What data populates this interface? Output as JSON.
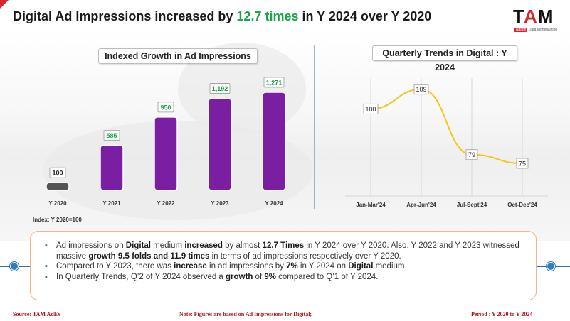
{
  "title": {
    "prefix": "Digital Ad Impressions increased by ",
    "highlight": "12.7 times",
    "suffix": " in Y 2024 over Y 2020"
  },
  "logo": {
    "brand_a": "T",
    "brand_b": "A",
    "brand_c": "M",
    "tag": "Nation",
    "subtitle": "Data Monetization"
  },
  "colors": {
    "bar": "#7b1fa2",
    "bar_base": "#555555",
    "line": "#f5c518",
    "accent_green": "#1aa34a",
    "footer_red": "#b0121b",
    "timeline": "#2f6db5"
  },
  "chart_data": [
    {
      "type": "bar",
      "title": "Indexed Growth in Ad Impressions",
      "categories": [
        "Y 2020",
        "Y 2021",
        "Y 2022",
        "Y 2023",
        "Y 2024"
      ],
      "values": [
        100,
        585,
        950,
        1192,
        1271
      ],
      "data_labels": [
        "100",
        "585",
        "950",
        "1,192",
        "1,271"
      ],
      "ylim": [
        0,
        1400
      ],
      "grid": false
    },
    {
      "type": "line",
      "title": "Quarterly Trends in Digital : Y 2024",
      "categories": [
        "Jan-Mar'24",
        "Apr-Jun'24",
        "Jul-Sept'24",
        "Oct-Dec'24"
      ],
      "values": [
        100,
        109,
        79,
        75
      ],
      "ylim": [
        60,
        120
      ],
      "grid": true
    }
  ],
  "index_note": "Index: Y 2020=100",
  "notes": {
    "n1_a": "Ad impressions on ",
    "n1_b": "Digital",
    "n1_c": " medium ",
    "n1_d": "increased",
    "n1_e": " by almost ",
    "n1_f": "12.7 Times",
    "n1_g": " in Y 2024 over Y 2020. Also, Y 2022 and Y 2023 witnessed massive ",
    "n1_h": "growth 9.5 folds and 11.9 times",
    "n1_i": " in terms of ad impressions respectively over Y 2020.",
    "n2_a": "Compared to Y 2023, there was ",
    "n2_b": "increase",
    "n2_c": " in ad impressions by ",
    "n2_d": "7%",
    "n2_e": " in Y 2024 on ",
    "n2_f": "Digital",
    "n2_g": " medium.",
    "n3_a": "In Quarterly Trends, Q’2 of Y 2024 observed a ",
    "n3_b": "growth",
    "n3_c": " of ",
    "n3_d": "9%",
    "n3_e": " compared to Q’1 of Y 2024."
  },
  "footer": {
    "source": "Source: TAM AdEx",
    "note": "Note: Figures are based on Ad Impressions for Digital;",
    "period": "Period : Y 2020 to Y 2024"
  }
}
